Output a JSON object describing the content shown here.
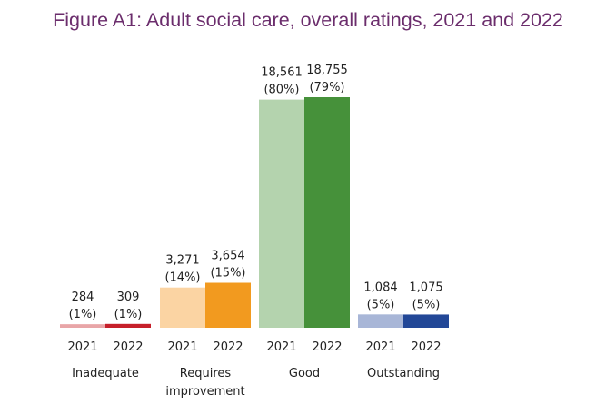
{
  "chart_data": {
    "type": "bar",
    "title": "Figure A1: Adult social care, overall ratings, 2021 and 2022",
    "categories": [
      "Inadequate",
      "Requires improvement",
      "Good",
      "Outstanding"
    ],
    "category_lines": [
      [
        "Inadequate"
      ],
      [
        "Requires",
        "improvement"
      ],
      [
        "Good"
      ],
      [
        "Outstanding"
      ]
    ],
    "years": [
      "2021",
      "2022"
    ],
    "values": [
      [
        284,
        309
      ],
      [
        3271,
        3654
      ],
      [
        18561,
        18755
      ],
      [
        1084,
        1075
      ]
    ],
    "labels": [
      [
        [
          "284",
          "(1%)"
        ],
        [
          "309",
          "(1%)"
        ]
      ],
      [
        [
          "3,271",
          "(14%)"
        ],
        [
          "3,654",
          "(15%)"
        ]
      ],
      [
        [
          "18,561",
          "(80%)"
        ],
        [
          "18,755",
          "(79%)"
        ]
      ],
      [
        [
          "1,084",
          "(5%)"
        ],
        [
          "1,075",
          "(5%)"
        ]
      ]
    ],
    "colors": [
      [
        "#e8a5a7",
        "#c61f2a"
      ],
      [
        "#fbd4a3",
        "#f29a1f"
      ],
      [
        "#b4d3ae",
        "#46913a"
      ],
      [
        "#a8b6d7",
        "#224797"
      ]
    ],
    "grid": false,
    "legend": "none"
  }
}
